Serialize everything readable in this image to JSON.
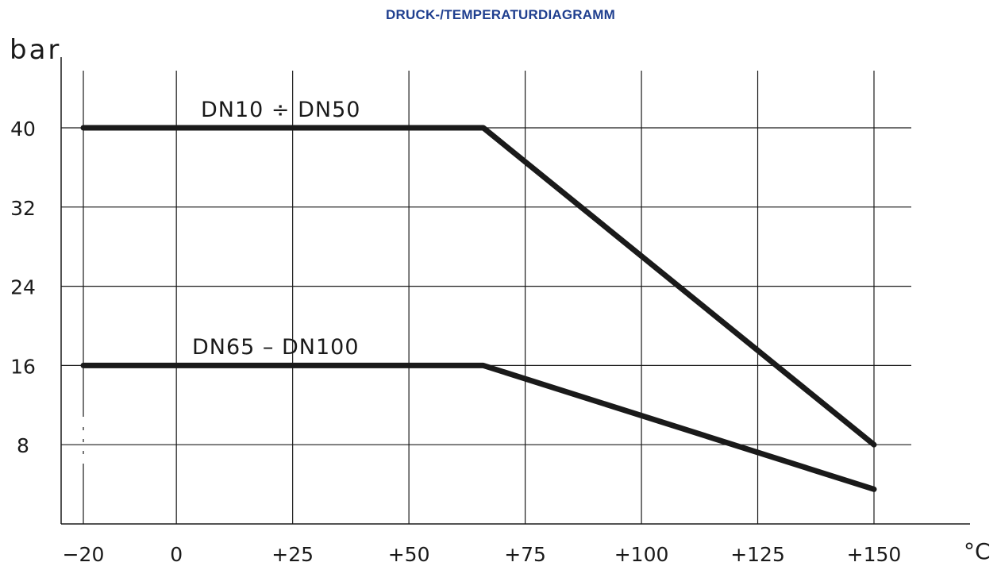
{
  "chart_data": {
    "type": "line",
    "title": "DRUCK-/TEMPERATURDIAGRAMM",
    "xlabel": "°C",
    "ylabel": "bar",
    "x_ticks": [
      "−20",
      "0",
      "+25",
      "+50",
      "+75",
      "+100",
      "+125",
      "+150"
    ],
    "x_tick_values": [
      -20,
      0,
      25,
      50,
      75,
      100,
      125,
      150
    ],
    "y_ticks": [
      "8",
      "16",
      "24",
      "32",
      "40"
    ],
    "y_tick_values": [
      8,
      16,
      24,
      32,
      40
    ],
    "xlim": [
      -25,
      170
    ],
    "ylim": [
      0,
      46
    ],
    "grid": true,
    "colors": {
      "title": "#1f3f8f",
      "line": "#1a1a1a",
      "grid": "#1a1a1a"
    },
    "series": [
      {
        "name": "DN10 ÷ DN50",
        "x": [
          -20,
          66,
          150
        ],
        "y": [
          40,
          40,
          8
        ]
      },
      {
        "name": "DN65 – DN100",
        "x": [
          -20,
          66,
          150
        ],
        "y": [
          16,
          16,
          3.5
        ]
      }
    ]
  }
}
